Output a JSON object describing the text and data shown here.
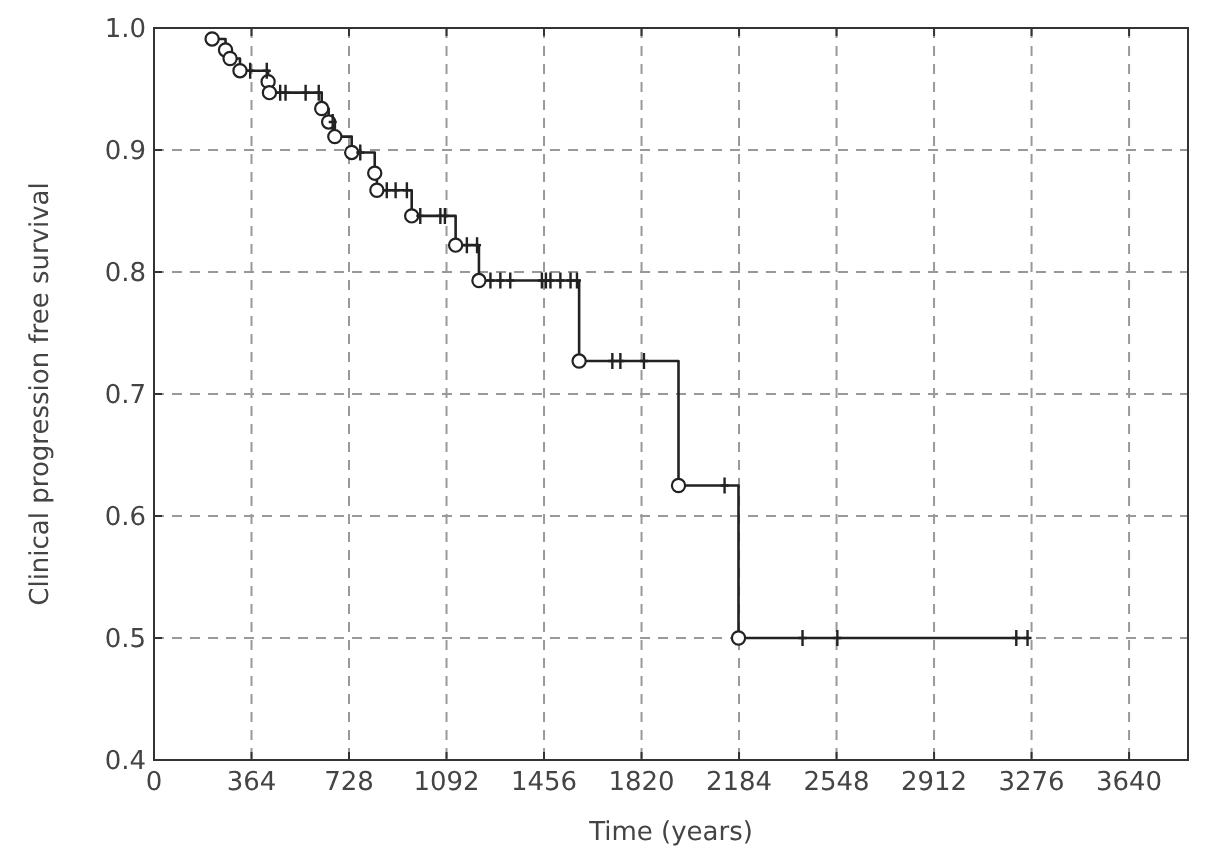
{
  "chart_data": {
    "type": "step",
    "xlabel": "Time (years)",
    "ylabel": "Clinical progression free survival",
    "xlim": [
      0,
      3860
    ],
    "xticks": [
      0,
      364,
      728,
      1092,
      1456,
      1820,
      2184,
      2548,
      2912,
      3276,
      3640
    ],
    "ylim": [
      0.4,
      1.0
    ],
    "yticks": [
      {
        "value": 0.4,
        "label": "0.4"
      },
      {
        "value": 0.5,
        "label": "0.5"
      },
      {
        "value": 0.6,
        "label": "0.6"
      },
      {
        "value": 0.7,
        "label": "0.7"
      },
      {
        "value": 0.8,
        "label": "0.8"
      },
      {
        "value": 0.9,
        "label": "0.9"
      },
      {
        "value": 1.0,
        "label": "1.0"
      }
    ],
    "grid": true,
    "series": [
      {
        "color": "#222222",
        "marker": "none",
        "x": [
          217,
          267,
          284,
          321,
          426,
          431,
          626,
          652,
          675,
          738,
          824,
          832,
          962,
          1126,
          1213,
          1587,
          1958,
          2182,
          3261
        ],
        "values": [
          0.991,
          0.982,
          0.975,
          0.965,
          0.956,
          0.947,
          0.934,
          0.923,
          0.911,
          0.898,
          0.881,
          0.867,
          0.846,
          0.822,
          0.793,
          0.727,
          0.625,
          0.5,
          0.5
        ]
      },
      {
        "type": "scatter",
        "color": "#222222",
        "marker": "circle",
        "x": [
          217,
          267,
          284,
          321,
          426,
          431,
          626,
          652,
          675,
          738,
          824,
          832,
          962,
          1126,
          1213,
          1587,
          1958,
          2182
        ],
        "values": [
          0.991,
          0.982,
          0.975,
          0.965,
          0.956,
          0.947,
          0.934,
          0.923,
          0.911,
          0.898,
          0.881,
          0.867,
          0.846,
          0.822,
          0.793,
          0.727,
          0.625,
          0.5
        ]
      },
      {
        "type": "scatter",
        "color": "#222222",
        "marker": "cross",
        "x": [
          359,
          421,
          471,
          491,
          566,
          615,
          667,
          770,
          869,
          902,
          944,
          994,
          1069,
          1086,
          1168,
          1206,
          1256,
          1293,
          1330,
          1448,
          1463,
          1480,
          1517,
          1555,
          1579,
          1711,
          1741,
          1829,
          2130,
          2421,
          2551,
          3219,
          3261
        ],
        "values": [
          0.965,
          0.965,
          0.947,
          0.947,
          0.947,
          0.947,
          0.923,
          0.898,
          0.867,
          0.867,
          0.867,
          0.846,
          0.846,
          0.846,
          0.822,
          0.822,
          0.793,
          0.793,
          0.793,
          0.793,
          0.793,
          0.793,
          0.793,
          0.793,
          0.793,
          0.727,
          0.727,
          0.727,
          0.625,
          0.5,
          0.5,
          0.5,
          0.5
        ]
      }
    ]
  }
}
